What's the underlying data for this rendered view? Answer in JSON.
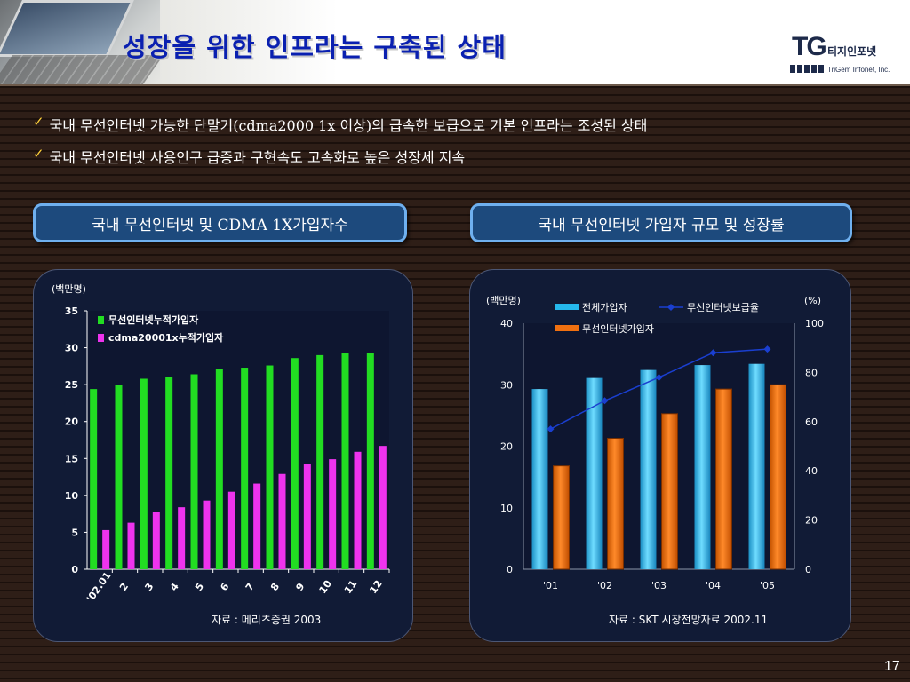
{
  "header": {
    "title": "성장을 위한 인프라는 구축된 상태",
    "logo": {
      "mark": "TG",
      "name_kr": "티지인포넷",
      "name_en": "TriGem Infonet, Inc."
    }
  },
  "bullets": [
    "국내 무선인터넷 가능한 단말기(cdma2000 1x 이상)의 급속한 보급으로 기본 인프라는 조성된 상태",
    "국내 무선인터넷 사용인구 급증과 구현속도 고속화로 높은 성장세 지속"
  ],
  "pill_left": "국내 무선인터넷 및 CDMA 1X가입자수",
  "pill_right": "국내 무선인터넷 가입자 규모 및 성장률",
  "source_left": "자료 : 메리츠증권 2003",
  "source_right": "자료 : SKT 시장전망자료 2002.11",
  "page_number": "17",
  "colors": {
    "green": "#22dd22",
    "magenta": "#ee33ee",
    "cyan": "#25b8ec",
    "orange": "#f07010",
    "line": "#1a3fd0",
    "title": "#0a20b0"
  },
  "chart_data": [
    {
      "type": "bar",
      "unit_label": "(백만명)",
      "categories": [
        "'02.01",
        "2",
        "3",
        "4",
        "5",
        "6",
        "7",
        "8",
        "9",
        "10",
        "11",
        "12"
      ],
      "series": [
        {
          "name": "무선인터넷누적가입자",
          "values": [
            24.4,
            25.0,
            25.8,
            26.0,
            26.4,
            27.1,
            27.3,
            27.6,
            28.6,
            29.0,
            29.3,
            29.3
          ]
        },
        {
          "name": "cdma20001x누적가입자",
          "values": [
            5.3,
            6.3,
            7.7,
            8.4,
            9.3,
            10.5,
            11.6,
            12.9,
            14.2,
            14.9,
            15.9,
            16.7
          ]
        }
      ],
      "yticks": [
        0,
        5,
        10,
        15,
        20,
        25,
        30,
        35
      ],
      "ylim": [
        0,
        35
      ],
      "legend": "top-left"
    },
    {
      "type": "bar",
      "left_unit_label": "(백만명)",
      "right_unit_label": "(%)",
      "categories": [
        "'01",
        "'02",
        "'03",
        "'04",
        "'05"
      ],
      "series": [
        {
          "name": "전체가입자",
          "type": "bar",
          "values": [
            29.3,
            31.1,
            32.4,
            33.2,
            33.4
          ]
        },
        {
          "name": "무선인터넷가입자",
          "type": "bar",
          "values": [
            16.8,
            21.3,
            25.3,
            29.3,
            30.0
          ]
        },
        {
          "name": "무선인터넷보급율",
          "type": "line",
          "axis": "right",
          "values": [
            57,
            68.5,
            78,
            88,
            89.5
          ]
        }
      ],
      "yticks_left": [
        0,
        10,
        20,
        30,
        40
      ],
      "ylim_left": [
        0,
        40
      ],
      "yticks_right": [
        0,
        20,
        40,
        60,
        80,
        100
      ],
      "ylim_right": [
        0,
        100
      ],
      "legend": "top"
    }
  ]
}
